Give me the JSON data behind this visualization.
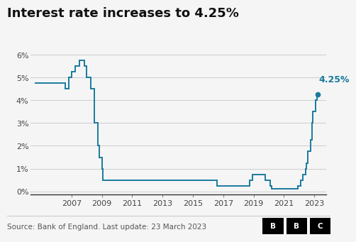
{
  "title": "Interest rate increases to 4.25%",
  "source": "Source: Bank of England. Last update: 23 March 2023",
  "line_color": "#1a7a9e",
  "annotation_color": "#1a7a9e",
  "background_color": "#f5f5f5",
  "grid_color": "#cccccc",
  "ylim": [
    -0.15,
    6.5
  ],
  "yticks": [
    0,
    1,
    2,
    3,
    4,
    5,
    6
  ],
  "ytick_labels": [
    "0%",
    "1%",
    "2%",
    "3%",
    "4%",
    "5%",
    "6%"
  ],
  "annotation_text": "4.25%",
  "dot_x": 2023.22,
  "dot_y": 4.25,
  "data": [
    [
      2004.6,
      4.75
    ],
    [
      2006.58,
      4.75
    ],
    [
      2006.58,
      4.5
    ],
    [
      2006.83,
      4.5
    ],
    [
      2006.83,
      5.0
    ],
    [
      2007.0,
      5.0
    ],
    [
      2007.0,
      5.25
    ],
    [
      2007.25,
      5.25
    ],
    [
      2007.25,
      5.5
    ],
    [
      2007.5,
      5.5
    ],
    [
      2007.5,
      5.75
    ],
    [
      2007.83,
      5.75
    ],
    [
      2007.83,
      5.5
    ],
    [
      2008.0,
      5.5
    ],
    [
      2008.0,
      5.0
    ],
    [
      2008.25,
      5.0
    ],
    [
      2008.25,
      4.5
    ],
    [
      2008.5,
      4.5
    ],
    [
      2008.5,
      3.0
    ],
    [
      2008.75,
      3.0
    ],
    [
      2008.75,
      2.0
    ],
    [
      2008.83,
      2.0
    ],
    [
      2008.83,
      1.5
    ],
    [
      2009.0,
      1.5
    ],
    [
      2009.0,
      1.0
    ],
    [
      2009.08,
      1.0
    ],
    [
      2009.08,
      0.5
    ],
    [
      2016.58,
      0.5
    ],
    [
      2016.58,
      0.25
    ],
    [
      2018.75,
      0.25
    ],
    [
      2018.75,
      0.5
    ],
    [
      2018.92,
      0.5
    ],
    [
      2018.92,
      0.75
    ],
    [
      2019.75,
      0.75
    ],
    [
      2019.75,
      0.5
    ],
    [
      2020.08,
      0.5
    ],
    [
      2020.08,
      0.25
    ],
    [
      2020.17,
      0.25
    ],
    [
      2020.17,
      0.1
    ],
    [
      2021.92,
      0.1
    ],
    [
      2021.92,
      0.25
    ],
    [
      2022.08,
      0.25
    ],
    [
      2022.08,
      0.5
    ],
    [
      2022.25,
      0.5
    ],
    [
      2022.25,
      0.75
    ],
    [
      2022.42,
      0.75
    ],
    [
      2022.42,
      1.0
    ],
    [
      2022.5,
      1.0
    ],
    [
      2022.5,
      1.25
    ],
    [
      2022.58,
      1.25
    ],
    [
      2022.58,
      1.75
    ],
    [
      2022.75,
      1.75
    ],
    [
      2022.75,
      2.25
    ],
    [
      2022.83,
      2.25
    ],
    [
      2022.83,
      3.0
    ],
    [
      2022.92,
      3.0
    ],
    [
      2022.92,
      3.5
    ],
    [
      2023.08,
      3.5
    ],
    [
      2023.08,
      4.0
    ],
    [
      2023.17,
      4.0
    ],
    [
      2023.17,
      4.25
    ],
    [
      2023.22,
      4.25
    ]
  ],
  "xticks": [
    2007,
    2009,
    2011,
    2013,
    2015,
    2017,
    2019,
    2021,
    2023
  ],
  "xlim": [
    2004.3,
    2023.8
  ],
  "title_fontsize": 13,
  "tick_fontsize": 8,
  "source_fontsize": 7.5
}
